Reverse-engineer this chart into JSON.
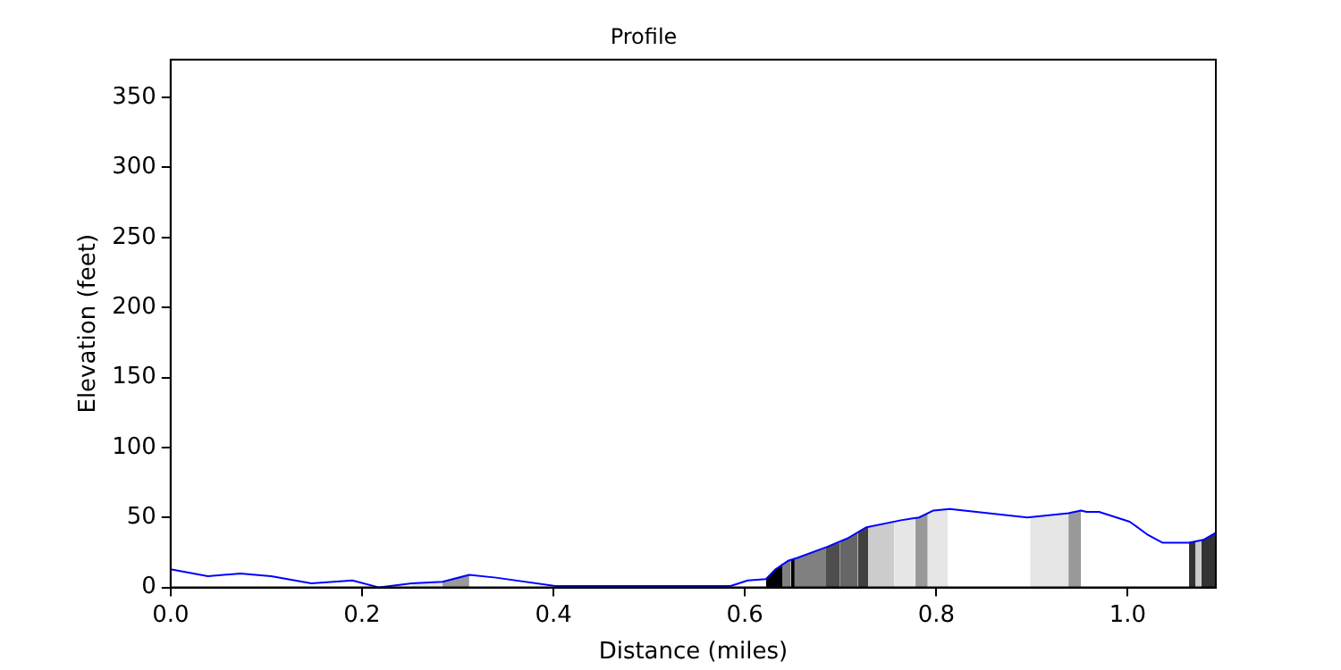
{
  "chart_data": {
    "type": "line",
    "title": "Profile",
    "xlabel": "Distance (miles)",
    "ylabel": "Elevation (feet)",
    "xlim": [
      0,
      1.092
    ],
    "ylim": [
      0,
      377
    ],
    "xticks": [
      {
        "value": 0,
        "label": "0.0"
      },
      {
        "value": 0.2,
        "label": "0.2"
      },
      {
        "value": 0.4,
        "label": "0.4"
      },
      {
        "value": 0.6,
        "label": "0.6"
      },
      {
        "value": 0.8,
        "label": "0.8"
      },
      {
        "value": 1,
        "label": "1.0"
      }
    ],
    "yticks": [
      0,
      50,
      100,
      150,
      200,
      250,
      300,
      350
    ],
    "grid": false,
    "legend": false,
    "series": [
      {
        "type": "area",
        "color": "#e6e6e6",
        "x": [
          0.252,
          0.284
        ],
        "values": [
          3,
          4
        ]
      },
      {
        "type": "area",
        "color": "#999999",
        "x": [
          0.284,
          0.312
        ],
        "values": [
          4,
          9
        ]
      },
      {
        "type": "area",
        "color": "#000000",
        "x": [
          0.622,
          0.632,
          0.639
        ],
        "values": [
          6,
          13,
          17
        ]
      },
      {
        "type": "area",
        "color": "#808080",
        "x": [
          0.639,
          0.645,
          0.648
        ],
        "values": [
          17,
          19,
          20
        ]
      },
      {
        "type": "area",
        "color": "#000000",
        "x": [
          0.648,
          0.652
        ],
        "values": [
          20,
          21
        ]
      },
      {
        "type": "area",
        "color": "#808080",
        "x": [
          0.652,
          0.654,
          0.684
        ],
        "values": [
          21,
          21,
          28
        ]
      },
      {
        "type": "area",
        "color": "#4d4d4d",
        "x": [
          0.684,
          0.686,
          0.699
        ],
        "values": [
          28,
          29,
          32
        ]
      },
      {
        "type": "area",
        "color": "#666666",
        "x": [
          0.699,
          0.707,
          0.718
        ],
        "values": [
          32,
          35,
          39
        ]
      },
      {
        "type": "area",
        "color": "#404040",
        "x": [
          0.718,
          0.727,
          0.729
        ],
        "values": [
          39,
          43,
          43
        ]
      },
      {
        "type": "area",
        "color": "#cccccc",
        "x": [
          0.729,
          0.756
        ],
        "values": [
          43,
          47
        ]
      },
      {
        "type": "area",
        "color": "#e6e6e6",
        "x": [
          0.756,
          0.763,
          0.778
        ],
        "values": [
          47,
          48,
          50
        ]
      },
      {
        "type": "area",
        "color": "#999999",
        "x": [
          0.778,
          0.782,
          0.791
        ],
        "values": [
          50,
          50,
          53
        ]
      },
      {
        "type": "area",
        "color": "#e6e6e6",
        "x": [
          0.791,
          0.797,
          0.812
        ],
        "values": [
          53,
          55,
          56
        ]
      },
      {
        "type": "area",
        "color": "#e6e6e6",
        "x": [
          0.898,
          0.938
        ],
        "values": [
          50,
          53
        ]
      },
      {
        "type": "area",
        "color": "#999999",
        "x": [
          0.938,
          0.951
        ],
        "values": [
          53,
          55
        ]
      },
      {
        "type": "area",
        "color": "#333333",
        "x": [
          1.064,
          1.071
        ],
        "values": [
          32,
          33
        ]
      },
      {
        "type": "area",
        "color": "#cccccc",
        "x": [
          1.071,
          1.077
        ],
        "values": [
          33,
          34
        ]
      },
      {
        "type": "area",
        "color": "#333333",
        "x": [
          1.077,
          1.079,
          1.092
        ],
        "values": [
          34,
          34,
          39
        ]
      },
      {
        "color": "#0000ff",
        "x": [
          0,
          0.039,
          0.073,
          0.105,
          0.147,
          0.19,
          0.218,
          0.252,
          0.284,
          0.312,
          0.34,
          0.402,
          0.585,
          0.603,
          0.622,
          0.632,
          0.645,
          0.654,
          0.686,
          0.707,
          0.727,
          0.763,
          0.782,
          0.797,
          0.814,
          0.895,
          0.938,
          0.951,
          0.957,
          0.97,
          1.002,
          1.02,
          1.036,
          1.064,
          1.079,
          1.092
        ],
        "values": [
          13,
          8,
          10,
          8,
          3,
          5,
          0,
          3,
          4,
          9,
          7,
          1,
          1,
          5,
          6,
          13,
          19,
          21,
          29,
          35,
          43,
          48,
          50,
          55,
          56,
          50,
          53,
          55,
          54,
          54,
          47,
          38,
          32,
          32,
          34,
          39
        ]
      }
    ]
  }
}
